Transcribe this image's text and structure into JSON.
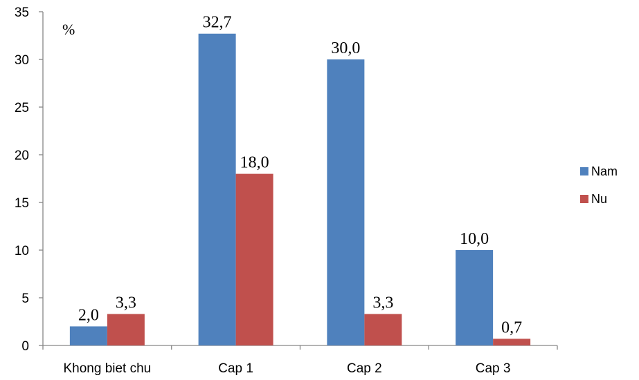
{
  "chart_data": {
    "type": "bar",
    "title": "",
    "xlabel": "",
    "ylabel": "",
    "unit_label": "%",
    "categories": [
      "Khong biet chu",
      "Cap 1",
      "Cap 2",
      "Cap 3"
    ],
    "series": [
      {
        "name": "Nam",
        "color": "#4F81BD",
        "values": [
          2.0,
          32.7,
          30.0,
          10.0
        ],
        "labels": [
          "2,0",
          "32,7",
          "30,0",
          "10,0"
        ]
      },
      {
        "name": "Nu",
        "color": "#C0504D",
        "values": [
          3.3,
          18.0,
          3.3,
          0.7
        ],
        "labels": [
          "3,3",
          "18,0",
          "3,3",
          "0,7"
        ]
      }
    ],
    "ylim": [
      0,
      35
    ],
    "yticks": [
      0,
      5,
      10,
      15,
      20,
      25,
      30,
      35
    ],
    "grid": false,
    "legend_position": "right"
  }
}
